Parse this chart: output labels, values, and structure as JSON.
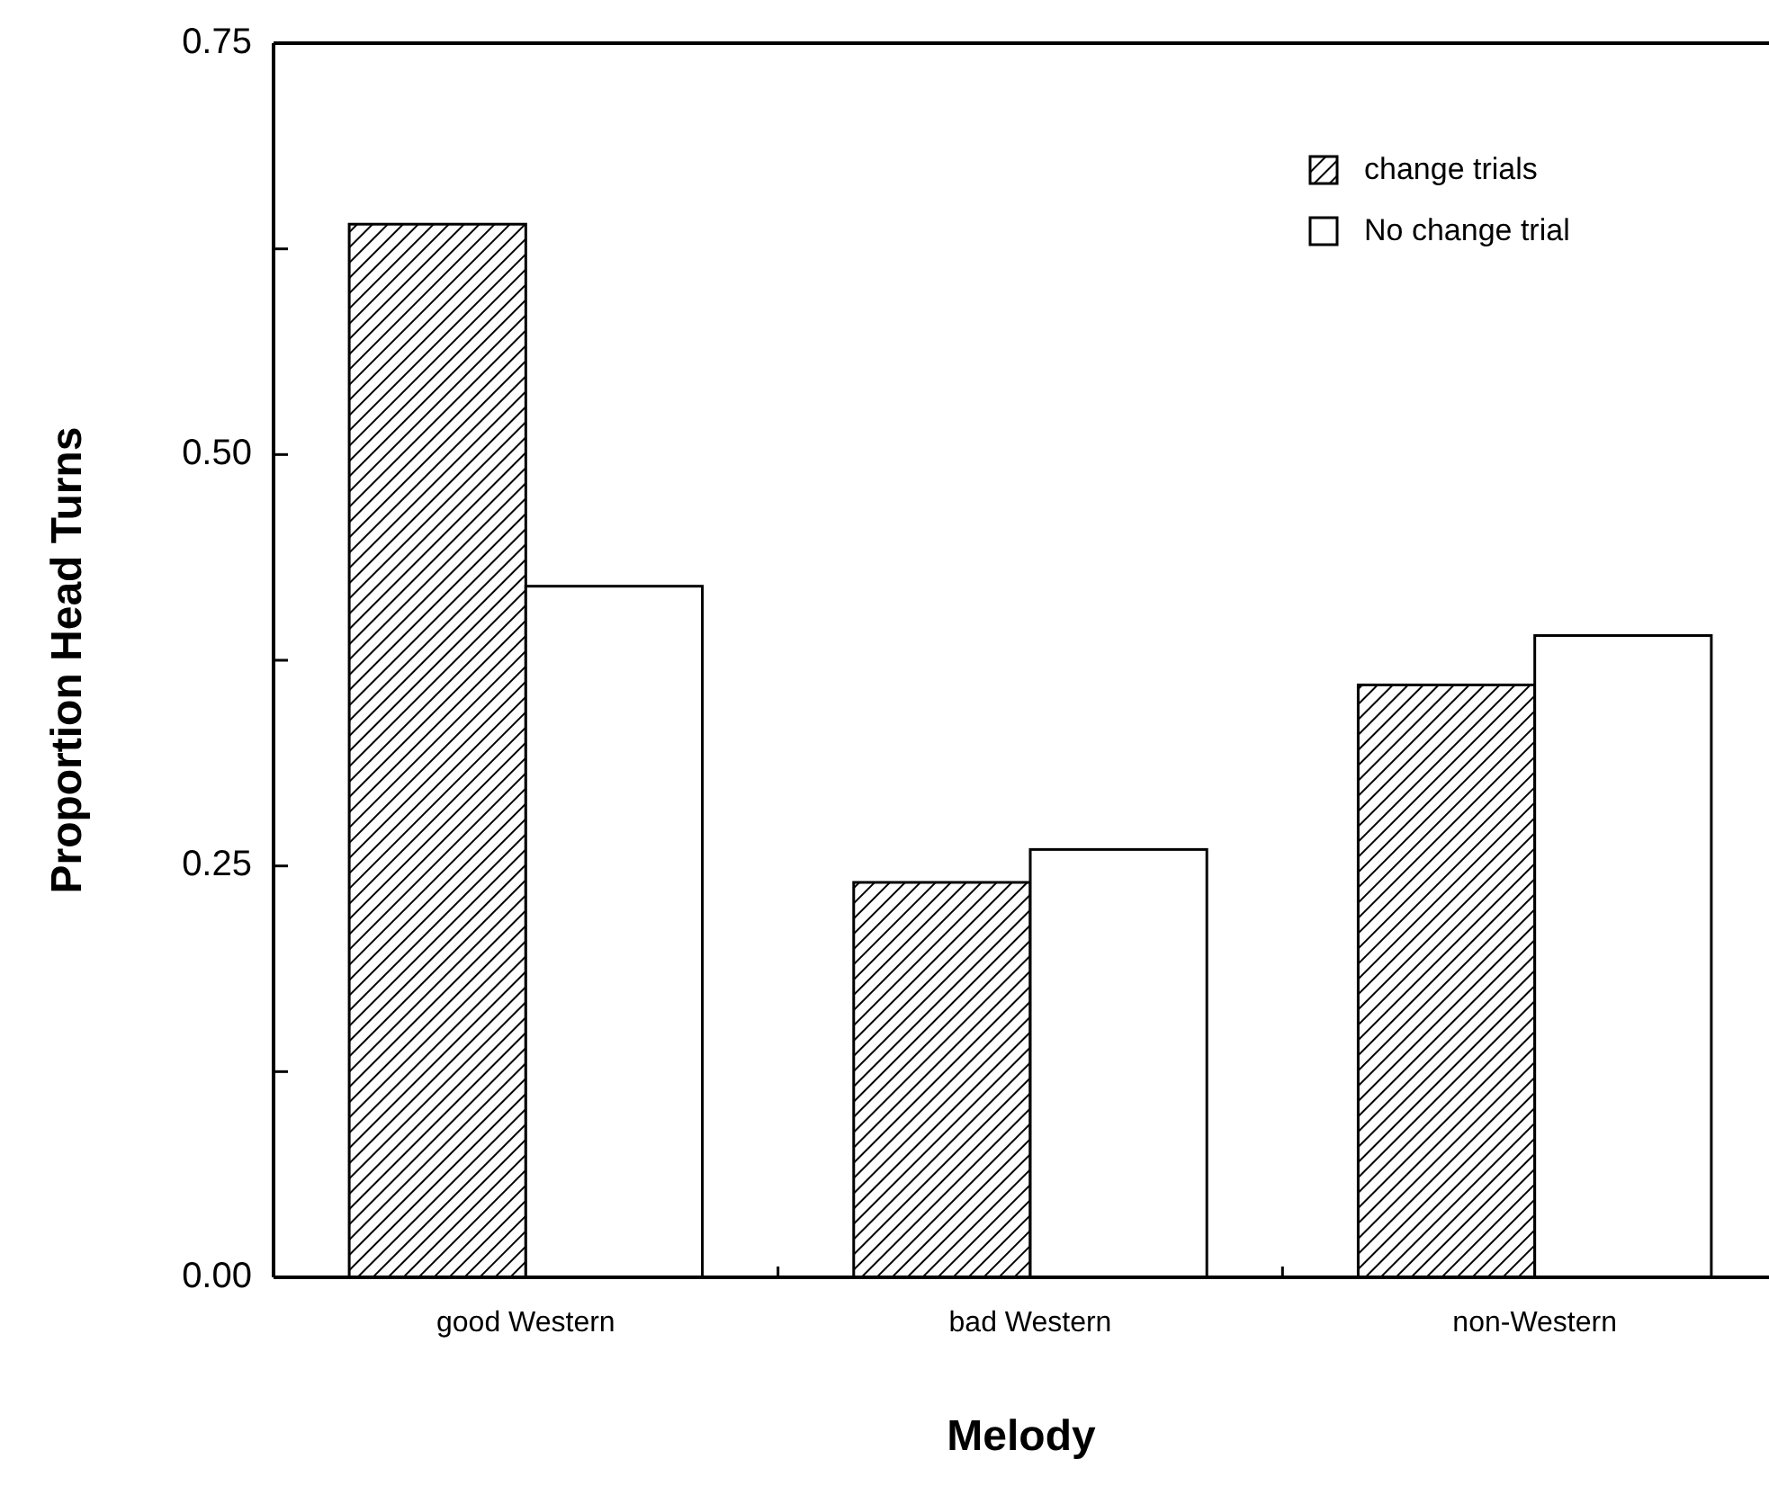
{
  "chart_data": {
    "type": "bar",
    "xlabel": "Melody",
    "ylabel": "Proportion Head Turns",
    "categories": [
      "good Western",
      "bad Western",
      "non-Western"
    ],
    "series": [
      {
        "name": "change trials",
        "color": "#000000",
        "values": [
          0.64,
          0.24,
          0.36
        ]
      },
      {
        "name": "No change trial",
        "color": "#ffffff",
        "values": [
          0.42,
          0.26,
          0.39
        ]
      }
    ],
    "ylim": [
      0,
      0.75
    ],
    "yticks": [
      {
        "value": 0,
        "label": "0.00"
      },
      {
        "value": 0.125,
        "label": null
      },
      {
        "value": 0.25,
        "label": "0.25"
      },
      {
        "value": 0.375,
        "label": null
      },
      {
        "value": 0.5,
        "label": "0.50"
      },
      {
        "value": 0.625,
        "label": null
      },
      {
        "value": 0.75,
        "label": "0.75"
      }
    ],
    "grid": false,
    "legend": "top right"
  }
}
